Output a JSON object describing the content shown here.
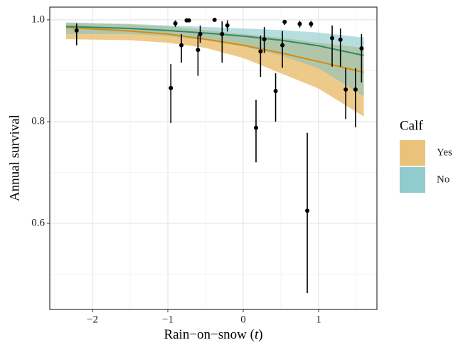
{
  "chart_data": {
    "type": "scatter",
    "ylabel": "Annual survival",
    "xlabel": [
      "Rain−on−snow (",
      "t",
      ")"
    ],
    "xlabel_italic": [
      false,
      true,
      false
    ],
    "xlim": [
      -2.566,
      1.774
    ],
    "ylim": [
      0.431,
      1.025
    ],
    "xticks": [
      {
        "value": -2,
        "label": "−2"
      },
      {
        "value": -1,
        "label": "−1"
      },
      0,
      1
    ],
    "yticks": [
      0.6,
      0.8,
      {
        "value": 1,
        "label": "1.0"
      }
    ],
    "x_minor_grid": [
      -2.5,
      -1.5,
      -0.5,
      0.5,
      1.5
    ],
    "y_minor_grid": [
      0.5,
      0.7,
      0.9
    ],
    "grid": true,
    "legend_title": "Calf",
    "legend_position": "right",
    "series": [
      {
        "name": "Yes",
        "color": "#d98a0b",
        "fill": "#e8bd6d",
        "x": [
          -2.35,
          -1.5,
          -1,
          -0.5,
          0,
          0.5,
          1,
          1.6
        ],
        "values": [
          0.985,
          0.978,
          0.972,
          0.962,
          0.95,
          0.935,
          0.918,
          0.897
        ],
        "lower": [
          0.962,
          0.96,
          0.955,
          0.945,
          0.925,
          0.895,
          0.865,
          0.81
        ],
        "upper": [
          0.994,
          0.991,
          0.987,
          0.98,
          0.972,
          0.965,
          0.955,
          0.945
        ]
      },
      {
        "name": "No",
        "color": "#2f8a6c",
        "fill": "#7cc2c4",
        "x": [
          -2.35,
          -1.5,
          -1,
          -0.5,
          0,
          0.5,
          1,
          1.6
        ],
        "values": [
          0.987,
          0.983,
          0.979,
          0.974,
          0.968,
          0.96,
          0.949,
          0.93
        ],
        "lower": [
          0.972,
          0.972,
          0.968,
          0.96,
          0.948,
          0.93,
          0.905,
          0.85
        ],
        "upper": [
          0.995,
          0.992,
          0.989,
          0.986,
          0.983,
          0.98,
          0.975,
          0.965
        ]
      }
    ],
    "points": {
      "color": "#000000",
      "x": [
        -2.21,
        -0.96,
        -0.9,
        -0.82,
        -0.75,
        -0.72,
        -0.6,
        -0.57,
        -0.38,
        -0.28,
        -0.21,
        0.17,
        0.23,
        0.28,
        0.43,
        0.52,
        0.55,
        0.75,
        0.85,
        0.9,
        1.18,
        1.29,
        1.36,
        1.49,
        1.57
      ],
      "values": [
        0.979,
        0.866,
        0.993,
        0.95,
        0.999,
        0.999,
        0.941,
        0.972,
        1.0,
        0.972,
        0.989,
        0.788,
        0.938,
        0.962,
        0.86,
        0.95,
        0.996,
        0.992,
        0.625,
        0.992,
        0.964,
        0.961,
        0.863,
        0.863,
        0.944
      ],
      "lower": [
        0.95,
        0.797,
        0.986,
        0.916,
        0.997,
        0.997,
        0.89,
        0.955,
        0.999,
        0.916,
        0.977,
        0.72,
        0.888,
        0.935,
        0.8,
        0.906,
        0.99,
        0.985,
        0.463,
        0.985,
        0.908,
        0.908,
        0.805,
        0.789,
        0.877
      ],
      "upper": [
        0.993,
        0.913,
        0.999,
        0.972,
        1.0,
        1.0,
        0.97,
        0.989,
        1.0,
        0.997,
        0.999,
        0.843,
        0.969,
        0.986,
        0.895,
        0.978,
        0.999,
        0.998,
        0.778,
        0.998,
        0.989,
        0.983,
        0.905,
        0.905,
        0.972
      ]
    }
  }
}
